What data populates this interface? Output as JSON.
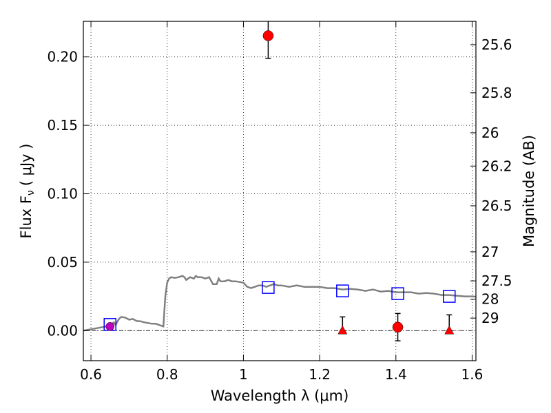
{
  "chart_data": {
    "type": "scatter",
    "title": "",
    "xlabel": "Wavelength  λ (μm)",
    "ylabel": "Flux  F",
    "ylabel_sub": "ν",
    "ylabel_unit": "( μJy )",
    "y2label": "Magnitude (AB)",
    "xlim": [
      0.58,
      1.61
    ],
    "ylim": [
      -0.022,
      0.226
    ],
    "xticks": [
      0.6,
      0.8,
      1.0,
      1.2,
      1.4,
      1.6
    ],
    "xtick_labels": [
      "0.6",
      "0.8",
      "1",
      "1.2",
      "1.4",
      "1.6"
    ],
    "yticks": [
      0.0,
      0.05,
      0.1,
      0.15,
      0.2
    ],
    "ytick_labels": [
      "0.00",
      "0.05",
      "0.10",
      "0.15",
      "0.20"
    ],
    "y2ticks": [
      25.6,
      25.8,
      26,
      26.2,
      26.5,
      27,
      27.5,
      28,
      29
    ],
    "y2tick_labels": [
      "25.6",
      "25.8",
      "26",
      "26.2",
      "26.5",
      "27",
      "27.5",
      "28",
      "29"
    ],
    "grid": true,
    "zero_line": true,
    "model_sed": {
      "color": "#808080",
      "x": [
        0.58,
        0.6,
        0.62,
        0.63,
        0.64,
        0.645,
        0.65,
        0.655,
        0.66,
        0.665,
        0.67,
        0.675,
        0.68,
        0.69,
        0.7,
        0.71,
        0.72,
        0.73,
        0.74,
        0.75,
        0.76,
        0.77,
        0.78,
        0.79,
        0.795,
        0.8,
        0.805,
        0.81,
        0.82,
        0.83,
        0.84,
        0.845,
        0.85,
        0.86,
        0.87,
        0.875,
        0.88,
        0.89,
        0.9,
        0.91,
        0.92,
        0.93,
        0.935,
        0.94,
        0.95,
        0.96,
        0.97,
        0.98,
        0.99,
        1.0,
        1.01,
        1.02,
        1.03,
        1.04,
        1.05,
        1.06,
        1.07,
        1.08,
        1.09,
        1.1,
        1.12,
        1.14,
        1.16,
        1.18,
        1.2,
        1.22,
        1.24,
        1.26,
        1.28,
        1.3,
        1.32,
        1.34,
        1.36,
        1.38,
        1.4,
        1.42,
        1.44,
        1.46,
        1.48,
        1.5,
        1.52,
        1.54,
        1.56,
        1.58,
        1.6,
        1.61
      ],
      "y": [
        0.0,
        0.001,
        0.002,
        0.0025,
        0.003,
        0.0035,
        0.004,
        0.005,
        0.006,
        0.004,
        0.007,
        0.009,
        0.01,
        0.0095,
        0.008,
        0.0085,
        0.007,
        0.0068,
        0.006,
        0.0055,
        0.005,
        0.005,
        0.004,
        0.003,
        0.025,
        0.035,
        0.038,
        0.039,
        0.0385,
        0.039,
        0.04,
        0.039,
        0.037,
        0.039,
        0.038,
        0.04,
        0.039,
        0.039,
        0.038,
        0.039,
        0.034,
        0.034,
        0.038,
        0.036,
        0.036,
        0.037,
        0.036,
        0.036,
        0.0355,
        0.035,
        0.032,
        0.031,
        0.032,
        0.033,
        0.033,
        0.032,
        0.033,
        0.034,
        0.033,
        0.033,
        0.032,
        0.033,
        0.032,
        0.032,
        0.032,
        0.031,
        0.031,
        0.03,
        0.0305,
        0.03,
        0.029,
        0.03,
        0.0285,
        0.029,
        0.028,
        0.028,
        0.028,
        0.027,
        0.0275,
        0.027,
        0.026,
        0.026,
        0.0255,
        0.025,
        0.025,
        0.0248
      ]
    },
    "model_points": {
      "marker": "open-square",
      "color": "#0000ff",
      "x": [
        0.65,
        1.065,
        1.26,
        1.405,
        1.54
      ],
      "y": [
        0.0045,
        0.0315,
        0.029,
        0.027,
        0.025
      ]
    },
    "detections": {
      "marker": "filled-circle",
      "color": "#ff0000",
      "points": [
        {
          "x": 1.065,
          "y": 0.2155,
          "err_low": 0.0165,
          "err_high": 0.014
        },
        {
          "x": 1.405,
          "y": 0.0025,
          "err_low": 0.01,
          "err_high": 0.01
        }
      ]
    },
    "upper_limits": {
      "marker": "filled-triangle",
      "color": "#ff0000",
      "points": [
        {
          "x": 1.26,
          "y": 0.0,
          "err_high": 0.01
        },
        {
          "x": 1.54,
          "y": 0.0,
          "err_high": 0.0115
        }
      ]
    },
    "magenta_point": {
      "marker": "filled-circle",
      "color": "#c000c0",
      "x": 0.65,
      "y": 0.003,
      "err_low": 0.0015,
      "err_high": 0.0015
    }
  }
}
